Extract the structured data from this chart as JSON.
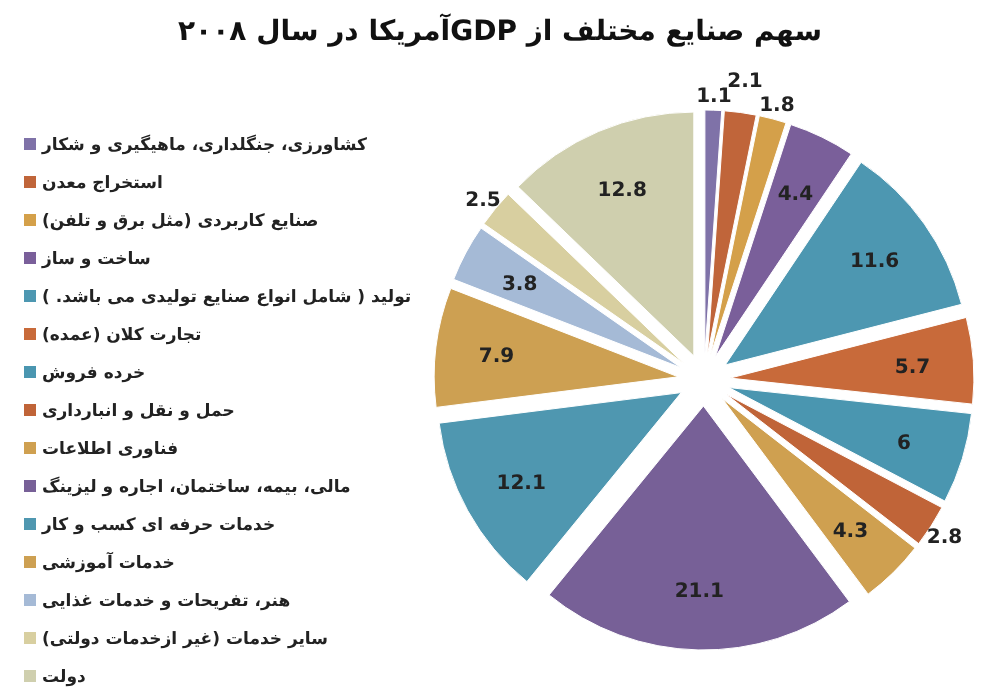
{
  "chart_data": {
    "type": "pie",
    "title": "سهم صنایع مختلف از GDPآمریکا در سال ۲۰۰۸",
    "categories": [
      "کشاورزی، جنگلداری، ماهیگیری و شکار",
      "استخراج معدن",
      "صنایع کاربردی (مثل برق و تلفن)",
      "ساخت و ساز",
      "تولید ( شامل انواع صنایع تولیدی می باشد. )",
      "تجارت کلان (عمده)",
      "خرده فروش",
      "حمل و نقل و انبارداری",
      "فناوری اطلاعات",
      "مالی، بیمه، ساختمان، اجاره و لیزینگ",
      "خدمات حرفه ای کسب و کار",
      "خدمات آموزشی",
      "هنر، تفریحات و خدمات غذایی",
      "سایر خدمات (غیر ازخدمات دولتی)",
      "دولت"
    ],
    "values": [
      1.1,
      2.1,
      1.8,
      4.4,
      11.6,
      5.7,
      6,
      2.8,
      4.3,
      21.1,
      12.1,
      7.9,
      3.8,
      2.5,
      12.8
    ],
    "colors": [
      "#7f72a8",
      "#c0653a",
      "#d4a04a",
      "#7a5f9a",
      "#4d97b1",
      "#c86a3a",
      "#4a96b0",
      "#c06438",
      "#cfa050",
      "#776097",
      "#4f97b0",
      "#cda052",
      "#a5bad6",
      "#d8cfa0",
      "#cfcfae"
    ],
    "data_labels": true,
    "legend": "left"
  }
}
